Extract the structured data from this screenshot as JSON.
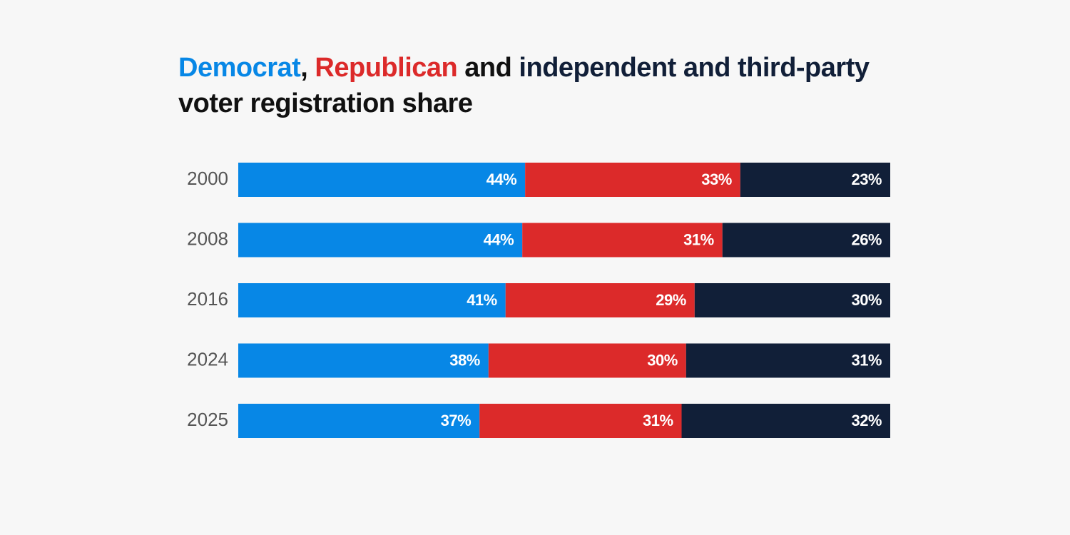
{
  "chart_data": {
    "type": "bar",
    "orientation": "horizontal",
    "stacked": true,
    "title": [
      ",",
      "and",
      "voter registration share"
    ],
    "title_color": "#111111",
    "categories": [
      "2000",
      "2008",
      "2016",
      "2024",
      "2025"
    ],
    "series": [
      {
        "name": "Democrat",
        "color": "#0787e6",
        "values": [
          44,
          44,
          41,
          38,
          37
        ],
        "value_labels": [
          "44%",
          "44%",
          "41%",
          "38%",
          "37%"
        ]
      },
      {
        "name": "Republican",
        "color": "#dc2a2a",
        "values": [
          33,
          31,
          29,
          30,
          31
        ],
        "value_labels": [
          "33%",
          "31%",
          "29%",
          "30%",
          "31%"
        ]
      },
      {
        "name": "independent and third-party",
        "color": "#111f38",
        "values": [
          23,
          26,
          30,
          31,
          32
        ],
        "value_labels": [
          "23%",
          "26%",
          "30%",
          "31%",
          "32%"
        ]
      }
    ]
  }
}
